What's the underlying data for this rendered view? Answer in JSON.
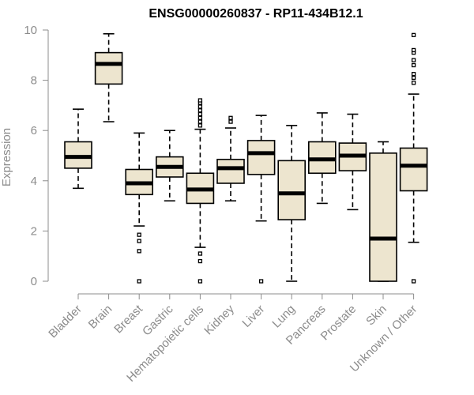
{
  "chart_data": {
    "type": "box",
    "title": "ENSG00000260837 - RP11-434B12.1",
    "xlabel": "",
    "ylabel": "Expression",
    "ylim": [
      0,
      10
    ],
    "yticks": [
      0,
      2,
      4,
      6,
      8,
      10
    ],
    "box_fill": "#ede5cf",
    "line_color": "#000000",
    "axis_color": "#8c8c8c",
    "categories": [
      "Bladder",
      "Brain",
      "Breast",
      "Gastric",
      "Hematopoietic cells",
      "Kidney",
      "Liver",
      "Lung",
      "Pancreas",
      "Prostate",
      "Skin",
      "Unknown / Other"
    ],
    "boxes": [
      {
        "label": "Bladder",
        "whisker_low": 3.7,
        "q1": 4.5,
        "median": 4.95,
        "q3": 5.55,
        "whisker_high": 6.85,
        "outliers": []
      },
      {
        "label": "Brain",
        "whisker_low": 6.35,
        "q1": 7.85,
        "median": 8.65,
        "q3": 9.1,
        "whisker_high": 9.85,
        "outliers": []
      },
      {
        "label": "Breast",
        "whisker_low": 2.2,
        "q1": 3.45,
        "median": 3.9,
        "q3": 4.45,
        "whisker_high": 5.9,
        "outliers": [
          1.85,
          1.6,
          1.2,
          0.0
        ]
      },
      {
        "label": "Gastric",
        "whisker_low": 3.2,
        "q1": 4.15,
        "median": 4.55,
        "q3": 4.95,
        "whisker_high": 6.0,
        "outliers": []
      },
      {
        "label": "Hematopoietic cells",
        "whisker_low": 1.35,
        "q1": 3.1,
        "median": 3.65,
        "q3": 4.3,
        "whisker_high": 6.05,
        "outliers": [
          6.2,
          6.35,
          6.5,
          6.65,
          6.8,
          6.95,
          7.1,
          7.2,
          1.1,
          0.8,
          0.0
        ]
      },
      {
        "label": "Kidney",
        "whisker_low": 3.2,
        "q1": 3.9,
        "median": 4.5,
        "q3": 4.85,
        "whisker_high": 6.1,
        "outliers": [
          6.35,
          6.5
        ]
      },
      {
        "label": "Liver",
        "whisker_low": 2.4,
        "q1": 4.25,
        "median": 5.1,
        "q3": 5.6,
        "whisker_high": 6.6,
        "outliers": [
          0.0
        ]
      },
      {
        "label": "Lung",
        "whisker_low": 0.0,
        "q1": 2.45,
        "median": 3.5,
        "q3": 4.8,
        "whisker_high": 6.2,
        "outliers": []
      },
      {
        "label": "Pancreas",
        "whisker_low": 3.1,
        "q1": 4.3,
        "median": 4.85,
        "q3": 5.55,
        "whisker_high": 6.7,
        "outliers": []
      },
      {
        "label": "Prostate",
        "whisker_low": 2.85,
        "q1": 4.4,
        "median": 5.0,
        "q3": 5.5,
        "whisker_high": 6.65,
        "outliers": []
      },
      {
        "label": "Skin",
        "whisker_low": 0.0,
        "q1": 0.0,
        "median": 1.7,
        "q3": 5.1,
        "whisker_high": 5.55,
        "outliers": []
      },
      {
        "label": "Unknown / Other",
        "whisker_low": 1.55,
        "q1": 3.6,
        "median": 4.6,
        "q3": 5.3,
        "whisker_high": 7.45,
        "outliers": [
          7.9,
          8.1,
          8.25,
          8.6,
          8.8,
          9.1,
          9.2,
          9.8,
          0.0
        ]
      }
    ]
  }
}
